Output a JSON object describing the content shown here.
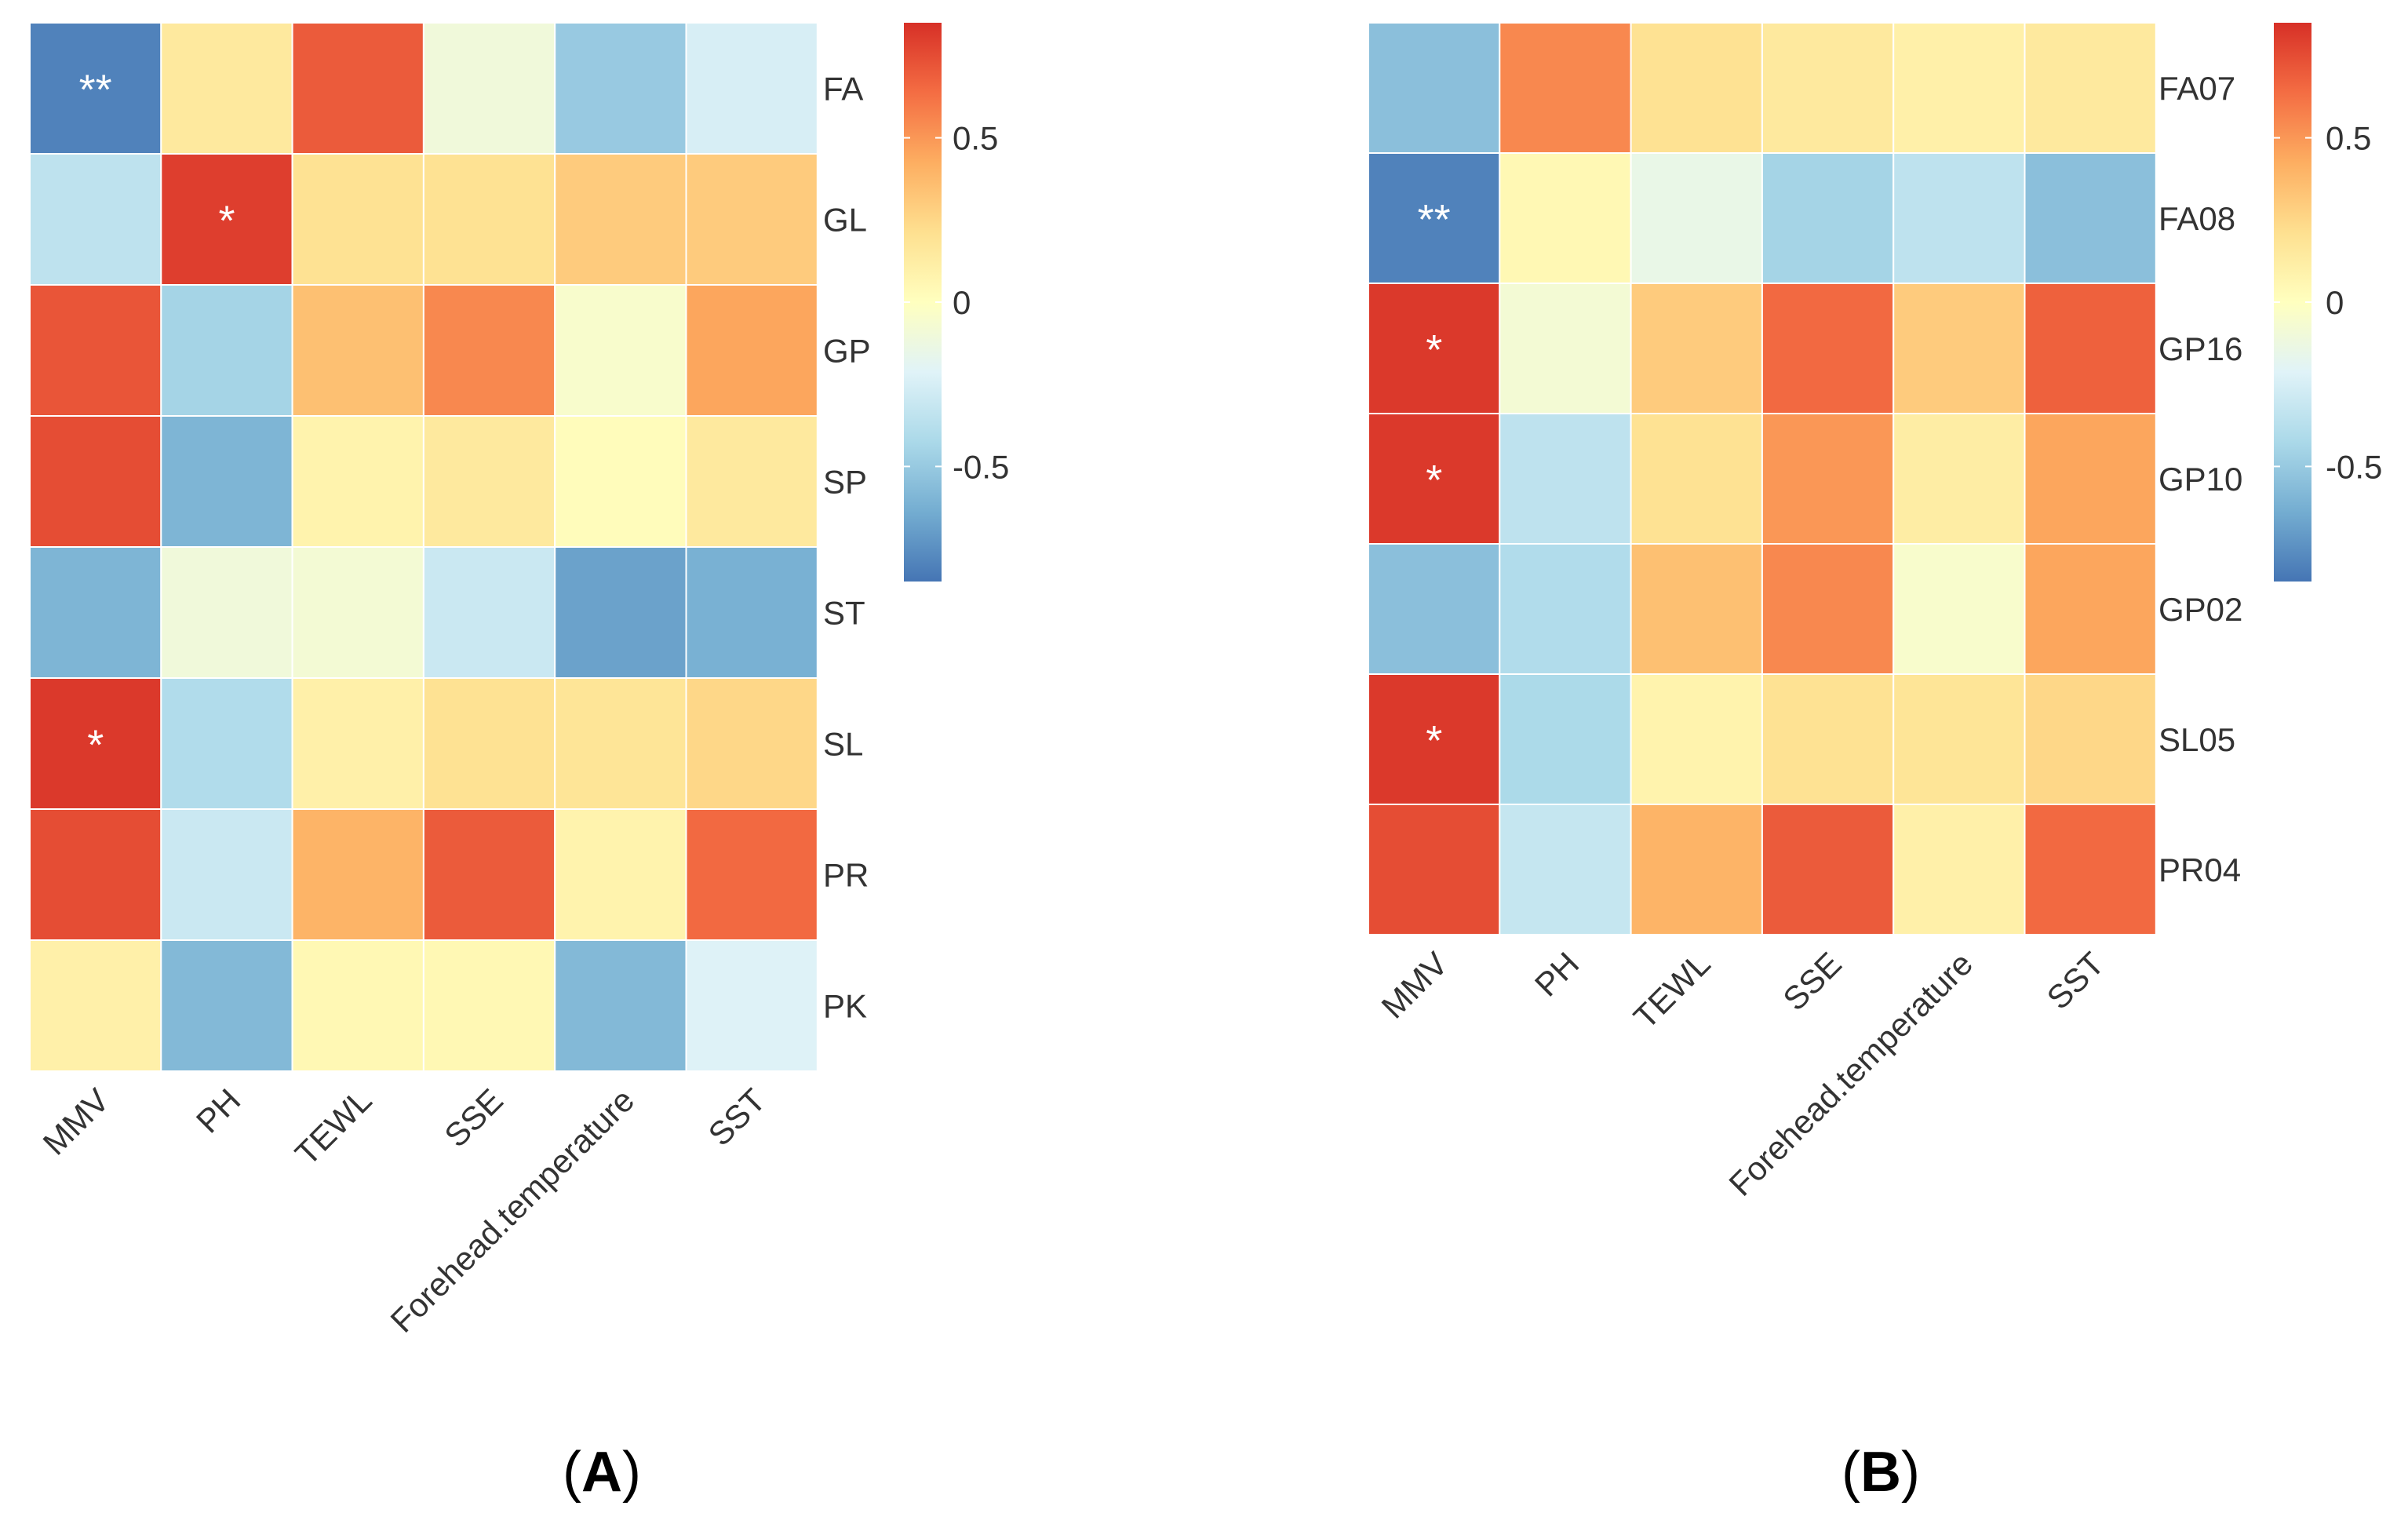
{
  "colors": {
    "low": "#4575b4",
    "mid": "#ffffbf",
    "high": "#d73027",
    "scale": [
      "#4575b4",
      "#74add1",
      "#abd9e9",
      "#e0f3f8",
      "#ffffbf",
      "#fee090",
      "#fdae61",
      "#f46d43",
      "#d73027"
    ]
  },
  "chart_data": [
    {
      "type": "heatmap",
      "panel_label": "A",
      "colorbar": {
        "range": [
          -0.85,
          0.85
        ],
        "ticks": [
          0.5,
          0,
          -0.5
        ],
        "tick_labels": [
          "0.5",
          "0",
          "-0.5"
        ]
      },
      "columns": [
        "MMV",
        "PH",
        "TEWL",
        "SSE",
        "Forehead.temperature",
        "SST"
      ],
      "rows": [
        "FA",
        "GL",
        "GP",
        "SP",
        "ST",
        "SL",
        "PR",
        "PK"
      ],
      "values": [
        [
          -0.8,
          0.15,
          0.7,
          -0.1,
          -0.5,
          -0.25
        ],
        [
          -0.35,
          0.8,
          0.2,
          0.2,
          0.3,
          0.3
        ],
        [
          0.72,
          -0.45,
          0.35,
          0.55,
          -0.05,
          0.45
        ],
        [
          0.75,
          -0.6,
          0.08,
          0.15,
          0.02,
          0.15
        ],
        [
          -0.6,
          -0.1,
          -0.08,
          -0.3,
          -0.68,
          -0.62
        ],
        [
          0.82,
          -0.4,
          0.1,
          0.2,
          0.18,
          0.25
        ],
        [
          0.75,
          -0.3,
          0.4,
          0.7,
          0.08,
          0.65
        ],
        [
          0.1,
          -0.58,
          0.05,
          0.05,
          -0.58,
          -0.22
        ]
      ],
      "significance": [
        [
          "**",
          "",
          "",
          "",
          "",
          ""
        ],
        [
          "",
          "*",
          "",
          "",
          "",
          ""
        ],
        [
          "",
          "",
          "",
          "",
          "",
          ""
        ],
        [
          "",
          "",
          "",
          "",
          "",
          ""
        ],
        [
          "",
          "",
          "",
          "",
          "",
          ""
        ],
        [
          "*",
          "",
          "",
          "",
          "",
          ""
        ],
        [
          "",
          "",
          "",
          "",
          "",
          ""
        ],
        [
          "",
          "",
          "",
          "",
          "",
          ""
        ]
      ]
    },
    {
      "type": "heatmap",
      "panel_label": "B",
      "colorbar": {
        "range": [
          -0.85,
          0.85
        ],
        "ticks": [
          0.5,
          0,
          -0.5
        ],
        "tick_labels": [
          "0.5",
          "0",
          "-0.5"
        ]
      },
      "columns": [
        "MMV",
        "PH",
        "TEWL",
        "SSE",
        "Forehead.temperature",
        "SST"
      ],
      "rows": [
        "FA07",
        "FA08",
        "GP16",
        "GP10",
        "GP02",
        "SL05",
        "PR04"
      ],
      "values": [
        [
          -0.55,
          0.55,
          0.2,
          0.15,
          0.1,
          0.15
        ],
        [
          -0.8,
          0.05,
          -0.15,
          -0.45,
          -0.35,
          -0.55
        ],
        [
          0.82,
          -0.08,
          0.3,
          0.65,
          0.3,
          0.68
        ],
        [
          0.82,
          -0.35,
          0.2,
          0.5,
          0.12,
          0.45
        ],
        [
          -0.55,
          -0.4,
          0.35,
          0.55,
          -0.05,
          0.45
        ],
        [
          0.82,
          -0.42,
          0.08,
          0.2,
          0.18,
          0.25
        ],
        [
          0.75,
          -0.32,
          0.4,
          0.7,
          0.1,
          0.65
        ]
      ],
      "significance": [
        [
          "",
          "",
          "",
          "",
          "",
          ""
        ],
        [
          "**",
          "",
          "",
          "",
          "",
          ""
        ],
        [
          "*",
          "",
          "",
          "",
          "",
          ""
        ],
        [
          "*",
          "",
          "",
          "",
          "",
          ""
        ],
        [
          "",
          "",
          "",
          "",
          "",
          ""
        ],
        [
          "*",
          "",
          "",
          "",
          "",
          ""
        ],
        [
          "",
          "",
          "",
          "",
          "",
          ""
        ]
      ]
    }
  ]
}
